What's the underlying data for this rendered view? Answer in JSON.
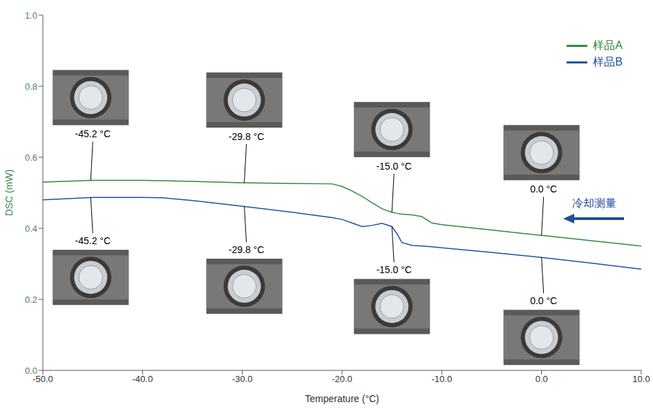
{
  "chart_data": {
    "type": "line",
    "x_label": "Temperature (°C)",
    "y_label": "DSC (mW)",
    "x": [
      -50,
      -45,
      -40,
      -38,
      -35,
      -30,
      -25,
      -21,
      -20,
      -19,
      -18,
      -17,
      -16,
      -15,
      -14.5,
      -14,
      -13,
      -12,
      -11,
      -10,
      -5,
      0,
      5,
      10
    ],
    "series": [
      {
        "name": "样品A",
        "color": "#2f8a3c",
        "values": [
          0.53,
          0.535,
          0.535,
          0.534,
          0.532,
          0.528,
          0.526,
          0.525,
          0.518,
          0.505,
          0.49,
          0.472,
          0.455,
          0.445,
          0.442,
          0.44,
          0.438,
          0.433,
          0.415,
          0.41,
          0.395,
          0.38,
          0.365,
          0.35
        ]
      },
      {
        "name": "样品B",
        "color": "#1f4fa0",
        "values": [
          0.48,
          0.487,
          0.487,
          0.486,
          0.478,
          0.462,
          0.445,
          0.43,
          0.425,
          0.415,
          0.405,
          0.408,
          0.414,
          0.405,
          0.385,
          0.36,
          0.352,
          0.35,
          0.348,
          0.345,
          0.332,
          0.318,
          0.302,
          0.285
        ]
      }
    ],
    "xlim": [
      -50,
      10
    ],
    "xticks": [
      {
        "value": -50,
        "label": "-50.0"
      },
      {
        "value": -40,
        "label": "-40.0"
      },
      {
        "value": -30,
        "label": "-30.0"
      },
      {
        "value": -20,
        "label": "-20.0"
      },
      {
        "value": -10,
        "label": "-10.0"
      },
      {
        "value": 0,
        "label": "0.0"
      },
      {
        "value": 10,
        "label": "10.0"
      }
    ],
    "ylim": [
      0,
      1
    ],
    "yticks": [
      {
        "value": 0,
        "label": "0.0"
      },
      {
        "value": 0.2,
        "label": "0.2"
      },
      {
        "value": 0.4,
        "label": "0.4"
      },
      {
        "value": 0.6,
        "label": "0.6"
      },
      {
        "value": 0.8,
        "label": "0.8"
      },
      {
        "value": 1,
        "label": "1.0"
      }
    ],
    "grid": false,
    "legend": "upper right",
    "annotations": [
      {
        "series": "样品A",
        "x": -45.2,
        "y": 0.535,
        "label": "-45.2 °C"
      },
      {
        "series": "样品A",
        "x": -29.8,
        "y": 0.528,
        "label": "-29.8 °C"
      },
      {
        "series": "样品A",
        "x": -15,
        "y": 0.445,
        "label": "-15.0 °C"
      },
      {
        "series": "样品A",
        "x": 0,
        "y": 0.38,
        "label": "0.0 °C"
      },
      {
        "series": "样品B",
        "x": -45.2,
        "y": 0.487,
        "label": "-45.2 °C"
      },
      {
        "series": "样品B",
        "x": -29.8,
        "y": 0.462,
        "label": "-29.8 °C"
      },
      {
        "series": "样品B",
        "x": -15,
        "y": 0.405,
        "label": "-15.0 °C"
      },
      {
        "series": "样品B",
        "x": 0,
        "y": 0.318,
        "label": "0.0 °C"
      }
    ],
    "arrow_label": "冷却测量"
  }
}
